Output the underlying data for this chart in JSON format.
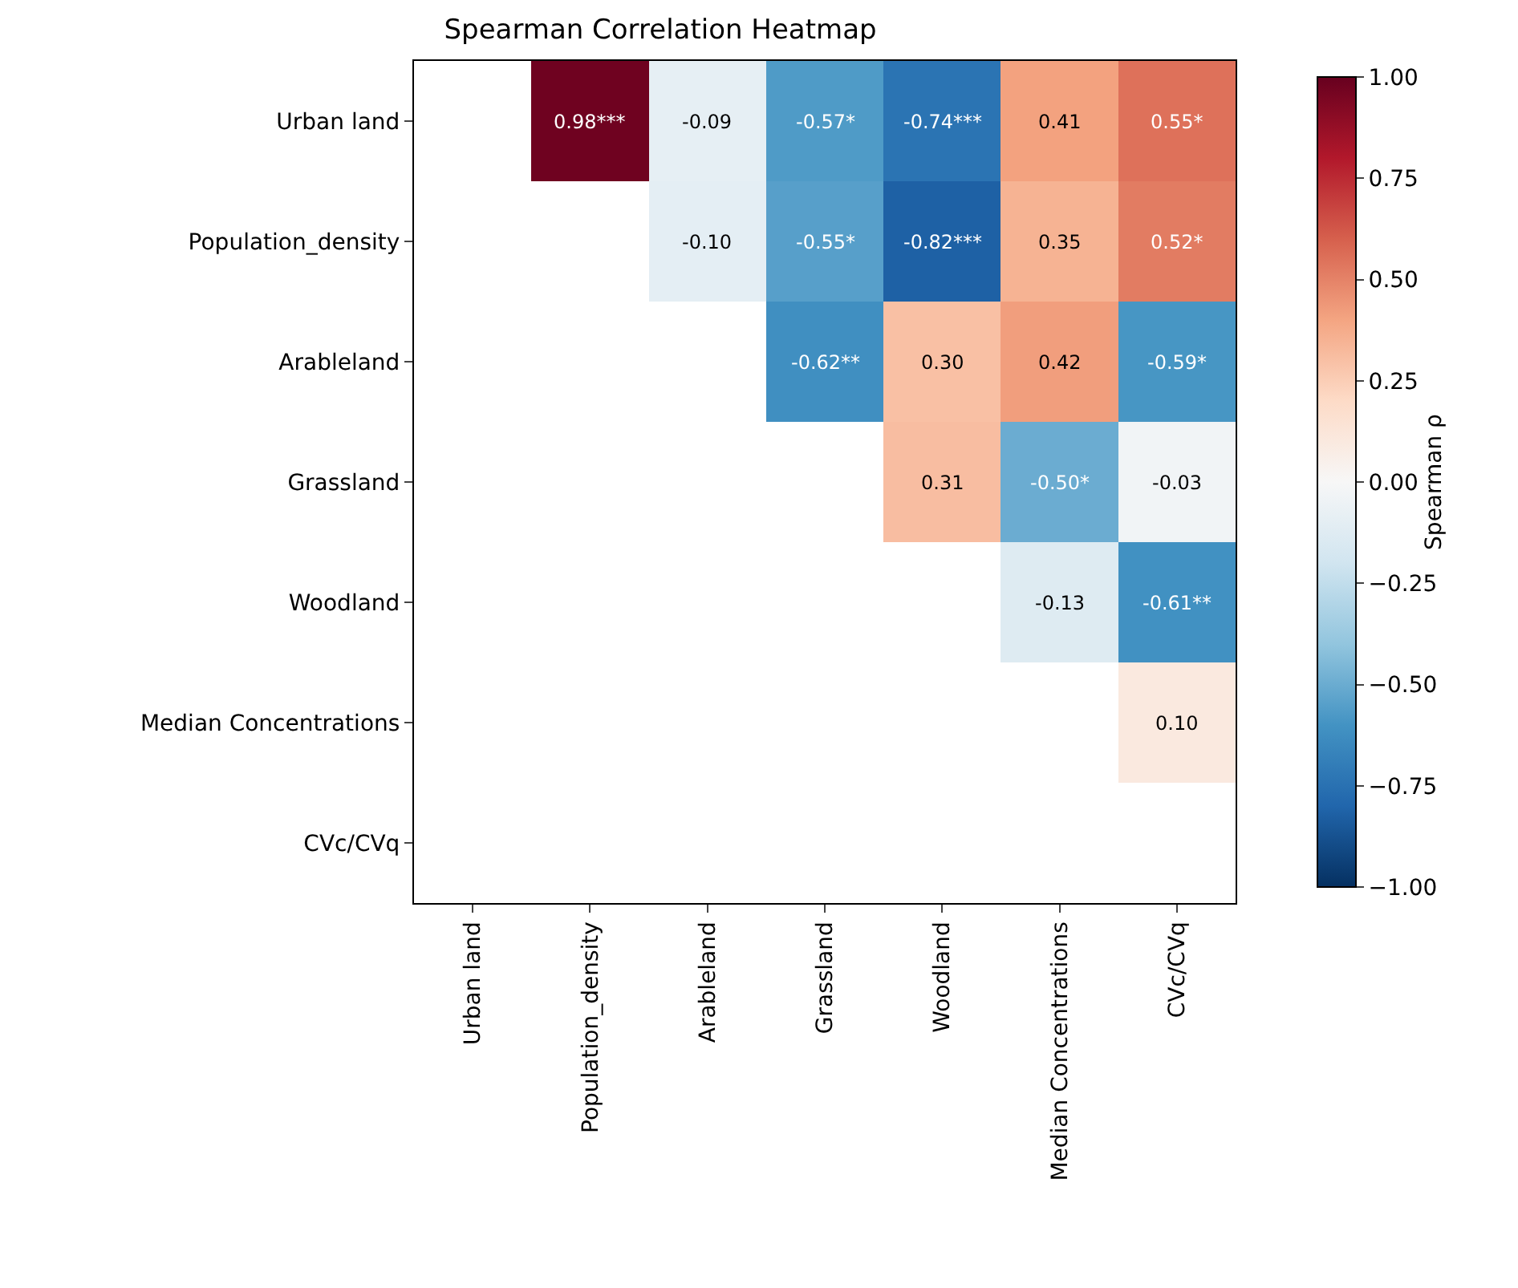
{
  "chart_data": {
    "type": "heatmap",
    "title": "Spearman Correlation Heatmap",
    "categories": [
      "Urban land",
      "Population_density",
      "Arableland",
      "Grassland",
      "Woodland",
      "Median Concentrations",
      "CVc/CVq"
    ],
    "y_categories": [
      "Urban land",
      "Population_density",
      "Arableland",
      "Grassland",
      "Woodland",
      "Median Concentrations",
      "CVc/CVq"
    ],
    "cells": [
      [
        null,
        0.98,
        -0.09,
        -0.57,
        -0.74,
        0.41,
        0.55
      ],
      [
        null,
        null,
        -0.1,
        -0.55,
        -0.82,
        0.35,
        0.52
      ],
      [
        null,
        null,
        null,
        -0.62,
        0.3,
        0.42,
        -0.59
      ],
      [
        null,
        null,
        null,
        null,
        0.31,
        -0.5,
        -0.03
      ],
      [
        null,
        null,
        null,
        null,
        null,
        -0.13,
        -0.61
      ],
      [
        null,
        null,
        null,
        null,
        null,
        null,
        0.1
      ],
      [
        null,
        null,
        null,
        null,
        null,
        null,
        null
      ]
    ],
    "cell_labels": [
      [
        null,
        "0.98***",
        "-0.09",
        "-0.57*",
        "-0.74***",
        "0.41",
        "0.55*"
      ],
      [
        null,
        null,
        "-0.10",
        "-0.55*",
        "-0.82***",
        "0.35",
        "0.52*"
      ],
      [
        null,
        null,
        null,
        "-0.62**",
        "0.30",
        "0.42",
        "-0.59*"
      ],
      [
        null,
        null,
        null,
        null,
        "0.31",
        "-0.50*",
        "-0.03"
      ],
      [
        null,
        null,
        null,
        null,
        null,
        "-0.13",
        "-0.61**"
      ],
      [
        null,
        null,
        null,
        null,
        null,
        null,
        "0.10"
      ],
      [
        null,
        null,
        null,
        null,
        null,
        null,
        null
      ]
    ],
    "clim": [
      -1,
      1
    ],
    "cticks": [
      {
        "value": 1,
        "label": "1.00"
      },
      {
        "value": 0.75,
        "label": "0.75"
      },
      {
        "value": 0.5,
        "label": "0.50"
      },
      {
        "value": 0.25,
        "label": "0.25"
      },
      {
        "value": 0,
        "label": "0.00"
      },
      {
        "value": -0.25,
        "label": "−0.25"
      },
      {
        "value": -0.5,
        "label": "−0.50"
      },
      {
        "value": -0.75,
        "label": "−0.75"
      },
      {
        "value": -1,
        "label": "−1.00"
      }
    ],
    "clabel": "Spearman ρ"
  }
}
